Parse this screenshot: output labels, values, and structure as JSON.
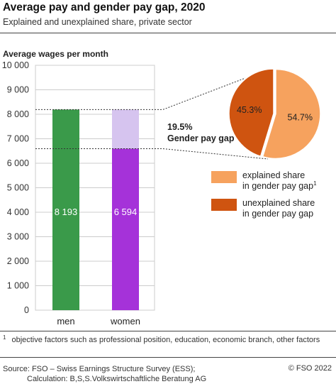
{
  "header": {
    "title": "Average pay and gender pay gap, 2020",
    "subtitle": "Explained and unexplained share, private sector"
  },
  "colors": {
    "men": "#3a9a4a",
    "women": "#a532d9",
    "gap": "#d6c4ef",
    "explained": "#f6a25e",
    "unexplained": "#cf5410",
    "grid": "#cccccc",
    "dotted": "#333333"
  },
  "chart_data": [
    {
      "type": "bar",
      "ylabel": "Average wages per month",
      "ylim": [
        0,
        10000
      ],
      "yticks": [
        0,
        1000,
        2000,
        3000,
        4000,
        5000,
        6000,
        7000,
        8000,
        9000,
        10000
      ],
      "ytick_labels": [
        "0",
        "1 000",
        "2 000",
        "3 000",
        "4 000",
        "5 000",
        "6 000",
        "7 000",
        "8 000",
        "9 000",
        "10 000"
      ],
      "categories": [
        "men",
        "women"
      ],
      "values": [
        8193,
        6594
      ],
      "value_labels": [
        "8 193",
        "6 594"
      ],
      "gap_annotation": {
        "value": "19.5%",
        "label": "Gender pay gap"
      },
      "grid": true
    },
    {
      "type": "pie",
      "slices": [
        {
          "name": "explained share in gender pay gap",
          "value": 54.7,
          "label": "54.7%"
        },
        {
          "name": "unexplained share in gender pay gap",
          "value": 45.3,
          "label": "45.3%"
        }
      ]
    }
  ],
  "legend": {
    "explained_line1": "explained share",
    "explained_line2": "in gender pay gap",
    "explained_mark": "1",
    "unexplained_line1": "unexplained share",
    "unexplained_line2": "in gender pay gap"
  },
  "footer": {
    "footnote_mark": "1",
    "footnote": "objective factors such as professional position, education, economic branch, other factors",
    "source_line1": "Source: FSO – Swiss Earnings Structure Survey (ESS);",
    "source_line2": "Calculation: B,S,S.Volkswirtschaftliche Beratung AG",
    "copyright": "© FSO 2022"
  }
}
